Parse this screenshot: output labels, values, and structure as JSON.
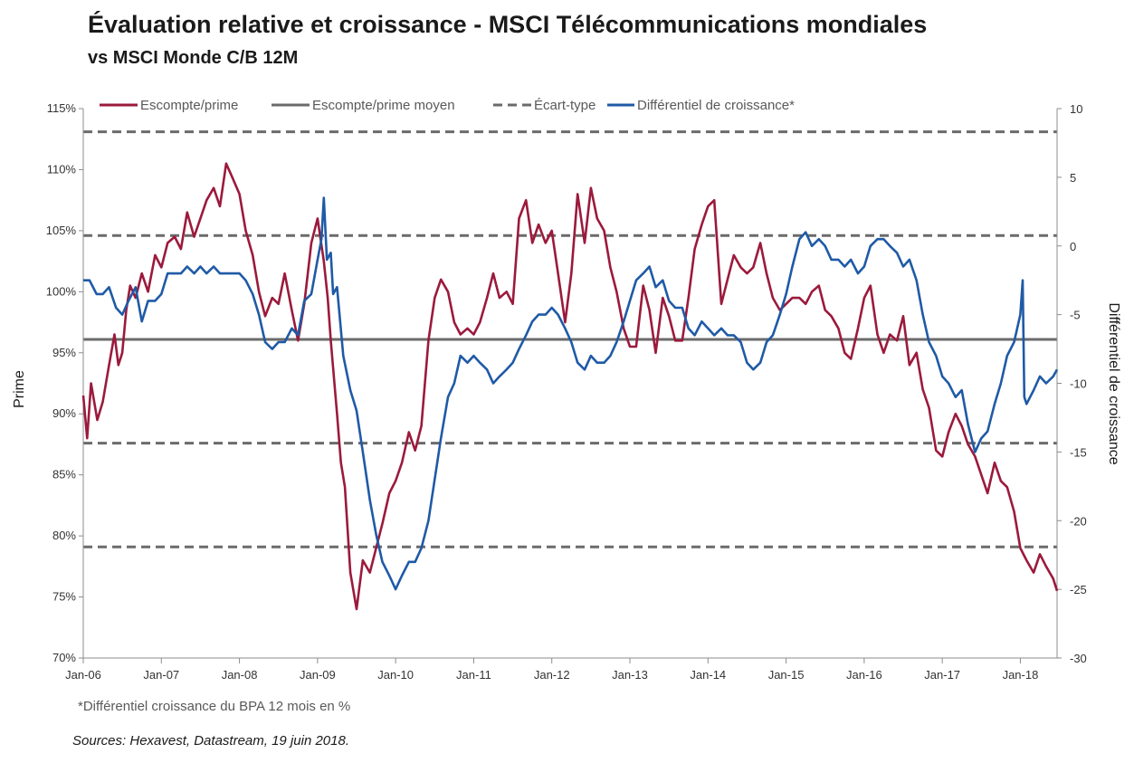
{
  "header": {
    "title": "Évaluation relative et croissance - MSCI Télécommunications mondiales",
    "subtitle": "vs MSCI Monde C/B 12M"
  },
  "footnote": "*Différentiel croissance du BPA 12 mois en %",
  "sources": "Sources: Hexavest, Datastream, 19 juin 2018.",
  "colors": {
    "premium": "#9b1a3c",
    "growth": "#1f5aa6",
    "average": "#6b6b6b",
    "stddev": "#6b6b6b",
    "axis": "#8c8c8c"
  },
  "chart_data": {
    "type": "line",
    "title": "",
    "ylabel": "Prime",
    "y2label": "Différentiel de croissance",
    "ylim": [
      70,
      115
    ],
    "y2lim": [
      -30,
      10
    ],
    "xlim": [
      2006.0,
      2018.47
    ],
    "yticks": [
      "70%",
      "75%",
      "80%",
      "85%",
      "90%",
      "95%",
      "100%",
      "105%",
      "110%",
      "115%"
    ],
    "y2ticks": [
      "-30",
      "-25",
      "-20",
      "-15",
      "-10",
      "-5",
      "0",
      "5",
      "10"
    ],
    "xticks": [
      "Jan-06",
      "Jan-07",
      "Jan-08",
      "Jan-09",
      "Jan-10",
      "Jan-11",
      "Jan-12",
      "Jan-13",
      "Jan-14",
      "Jan-15",
      "Jan-16",
      "Jan-17",
      "Jan-18"
    ],
    "legend": [
      "Escompte/prime",
      "Escompte/prime moyen",
      "Écart-type",
      "Différentiel de croissance*"
    ],
    "legend_position": "top",
    "average": 96.1,
    "stddev_lines": [
      87.6,
      79.1,
      104.6,
      113.1
    ],
    "series": [
      {
        "name": "Escompte/prime",
        "axis": "left",
        "x": [
          2006.0,
          2006.05,
          2006.1,
          2006.18,
          2006.25,
          2006.33,
          2006.4,
          2006.45,
          2006.5,
          2006.55,
          2006.6,
          2006.67,
          2006.75,
          2006.83,
          2006.92,
          2007.0,
          2007.08,
          2007.17,
          2007.25,
          2007.33,
          2007.42,
          2007.5,
          2007.58,
          2007.67,
          2007.75,
          2007.83,
          2007.9,
          2008.0,
          2008.08,
          2008.17,
          2008.25,
          2008.33,
          2008.42,
          2008.5,
          2008.58,
          2008.67,
          2008.75,
          2008.83,
          2008.92,
          2009.0,
          2009.08,
          2009.13,
          2009.17,
          2009.25,
          2009.3,
          2009.35,
          2009.42,
          2009.5,
          2009.58,
          2009.67,
          2009.75,
          2009.83,
          2009.92,
          2010.0,
          2010.08,
          2010.17,
          2010.25,
          2010.33,
          2010.42,
          2010.5,
          2010.58,
          2010.67,
          2010.75,
          2010.83,
          2010.92,
          2011.0,
          2011.08,
          2011.17,
          2011.25,
          2011.33,
          2011.42,
          2011.5,
          2011.58,
          2011.67,
          2011.75,
          2011.83,
          2011.92,
          2012.0,
          2012.08,
          2012.17,
          2012.25,
          2012.33,
          2012.42,
          2012.5,
          2012.58,
          2012.67,
          2012.75,
          2012.83,
          2012.92,
          2013.0,
          2013.08,
          2013.17,
          2013.25,
          2013.33,
          2013.42,
          2013.5,
          2013.58,
          2013.67,
          2013.75,
          2013.83,
          2013.92,
          2014.0,
          2014.08,
          2014.17,
          2014.25,
          2014.33,
          2014.42,
          2014.5,
          2014.58,
          2014.67,
          2014.75,
          2014.83,
          2014.92,
          2015.0,
          2015.08,
          2015.17,
          2015.25,
          2015.33,
          2015.42,
          2015.5,
          2015.58,
          2015.67,
          2015.75,
          2015.83,
          2015.92,
          2016.0,
          2016.08,
          2016.17,
          2016.25,
          2016.33,
          2016.42,
          2016.5,
          2016.58,
          2016.67,
          2016.75,
          2016.83,
          2016.92,
          2017.0,
          2017.08,
          2017.17,
          2017.25,
          2017.33,
          2017.42,
          2017.5,
          2017.58,
          2017.67,
          2017.75,
          2017.83,
          2017.92,
          2018.0,
          2018.08,
          2018.17,
          2018.25,
          2018.33,
          2018.42,
          2018.47
        ],
        "values": [
          91.5,
          88.0,
          92.5,
          89.5,
          91.0,
          94.0,
          96.5,
          94.0,
          95.0,
          98.5,
          100.5,
          99.5,
          101.5,
          100.0,
          103.0,
          102.0,
          104.0,
          104.5,
          103.5,
          106.5,
          104.5,
          106.0,
          107.5,
          108.5,
          107.0,
          110.5,
          109.5,
          108.0,
          105.0,
          103.0,
          100.0,
          98.0,
          99.5,
          99.0,
          101.5,
          98.5,
          96.0,
          99.0,
          104.0,
          106.0,
          102.5,
          99.5,
          96.0,
          90.0,
          86.0,
          84.0,
          77.0,
          74.0,
          78.0,
          77.0,
          79.0,
          81.0,
          83.5,
          84.5,
          86.0,
          88.5,
          87.0,
          89.0,
          96.0,
          99.5,
          101.0,
          100.0,
          97.5,
          96.5,
          97.0,
          96.5,
          97.5,
          99.5,
          101.5,
          99.5,
          100.0,
          99.0,
          106.0,
          107.5,
          104.0,
          105.5,
          104.0,
          105.0,
          101.5,
          97.5,
          101.5,
          108.0,
          104.0,
          108.5,
          106.0,
          105.0,
          102.0,
          100.0,
          97.0,
          95.5,
          95.5,
          100.5,
          98.5,
          95.0,
          99.5,
          98.0,
          96.0,
          96.0,
          99.5,
          103.5,
          105.5,
          107.0,
          107.5,
          99.0,
          101.0,
          103.0,
          102.0,
          101.5,
          102.0,
          104.0,
          101.5,
          99.5,
          98.5,
          99.0,
          99.5,
          99.5,
          99.0,
          100.0,
          100.5,
          98.5,
          98.0,
          97.0,
          95.0,
          94.5,
          97.0,
          99.5,
          100.5,
          96.5,
          95.0,
          96.5,
          96.0,
          98.0,
          94.0,
          95.0,
          92.0,
          90.5,
          87.0,
          86.5,
          88.5,
          90.0,
          89.0,
          87.5,
          86.5,
          85.0,
          83.5,
          86.0,
          84.5,
          84.0,
          82.0,
          79.0,
          78.0,
          77.0,
          78.5,
          77.5,
          76.5,
          75.5
        ]
      },
      {
        "name": "Différentiel de croissance*",
        "axis": "right",
        "x": [
          2006.0,
          2006.08,
          2006.17,
          2006.25,
          2006.33,
          2006.42,
          2006.5,
          2006.58,
          2006.67,
          2006.75,
          2006.83,
          2006.92,
          2007.0,
          2007.08,
          2007.17,
          2007.25,
          2007.33,
          2007.42,
          2007.5,
          2007.58,
          2007.67,
          2007.75,
          2007.83,
          2007.92,
          2008.0,
          2008.08,
          2008.17,
          2008.25,
          2008.33,
          2008.42,
          2008.5,
          2008.58,
          2008.67,
          2008.75,
          2008.83,
          2008.92,
          2009.0,
          2009.05,
          2009.08,
          2009.12,
          2009.17,
          2009.2,
          2009.25,
          2009.33,
          2009.42,
          2009.5,
          2009.58,
          2009.67,
          2009.75,
          2009.83,
          2009.92,
          2010.0,
          2010.08,
          2010.17,
          2010.25,
          2010.33,
          2010.42,
          2010.5,
          2010.58,
          2010.67,
          2010.75,
          2010.83,
          2010.92,
          2011.0,
          2011.08,
          2011.17,
          2011.25,
          2011.33,
          2011.42,
          2011.5,
          2011.58,
          2011.67,
          2011.75,
          2011.83,
          2011.92,
          2012.0,
          2012.08,
          2012.17,
          2012.25,
          2012.33,
          2012.42,
          2012.5,
          2012.58,
          2012.67,
          2012.75,
          2012.83,
          2012.92,
          2013.0,
          2013.08,
          2013.17,
          2013.25,
          2013.33,
          2013.42,
          2013.5,
          2013.58,
          2013.67,
          2013.75,
          2013.83,
          2013.92,
          2014.0,
          2014.08,
          2014.17,
          2014.25,
          2014.33,
          2014.42,
          2014.5,
          2014.58,
          2014.67,
          2014.75,
          2014.83,
          2014.92,
          2015.0,
          2015.08,
          2015.17,
          2015.25,
          2015.33,
          2015.42,
          2015.5,
          2015.58,
          2015.67,
          2015.75,
          2015.83,
          2015.92,
          2016.0,
          2016.08,
          2016.17,
          2016.25,
          2016.33,
          2016.42,
          2016.5,
          2016.58,
          2016.67,
          2016.75,
          2016.83,
          2016.92,
          2017.0,
          2017.08,
          2017.17,
          2017.25,
          2017.33,
          2017.42,
          2017.5,
          2017.58,
          2017.67,
          2017.75,
          2017.83,
          2017.92,
          2018.0,
          2018.03,
          2018.05,
          2018.08,
          2018.17,
          2018.25,
          2018.33,
          2018.42,
          2018.47
        ],
        "values": [
          -2.5,
          -2.5,
          -3.5,
          -3.5,
          -3.0,
          -4.5,
          -5.0,
          -4.0,
          -3.0,
          -5.5,
          -4.0,
          -4.0,
          -3.5,
          -2.0,
          -2.0,
          -2.0,
          -1.5,
          -2.0,
          -1.5,
          -2.0,
          -1.5,
          -2.0,
          -2.0,
          -2.0,
          -2.0,
          -2.5,
          -3.5,
          -5.0,
          -7.0,
          -7.5,
          -7.0,
          -7.0,
          -6.0,
          -6.5,
          -4.0,
          -3.5,
          -1.0,
          0.5,
          3.5,
          -1.0,
          -0.5,
          -3.5,
          -3.0,
          -8.0,
          -10.5,
          -12.0,
          -15.0,
          -18.5,
          -21.0,
          -23.0,
          -24.0,
          -25.0,
          -24.0,
          -23.0,
          -23.0,
          -22.0,
          -20.0,
          -17.0,
          -14.0,
          -11.0,
          -10.0,
          -8.0,
          -8.5,
          -8.0,
          -8.5,
          -9.0,
          -10.0,
          -9.5,
          -9.0,
          -8.5,
          -7.5,
          -6.5,
          -5.5,
          -5.0,
          -5.0,
          -4.5,
          -5.0,
          -6.0,
          -7.0,
          -8.5,
          -9.0,
          -8.0,
          -8.5,
          -8.5,
          -8.0,
          -7.0,
          -5.5,
          -4.0,
          -2.5,
          -2.0,
          -1.5,
          -3.0,
          -2.5,
          -4.0,
          -4.5,
          -4.5,
          -6.0,
          -6.5,
          -5.5,
          -6.0,
          -6.5,
          -6.0,
          -6.5,
          -6.5,
          -7.0,
          -8.5,
          -9.0,
          -8.5,
          -7.0,
          -6.5,
          -5.0,
          -3.5,
          -1.5,
          0.5,
          1.0,
          0.0,
          0.5,
          0.0,
          -1.0,
          -1.0,
          -1.5,
          -1.0,
          -2.0,
          -1.5,
          0.0,
          0.5,
          0.5,
          0.0,
          -0.5,
          -1.5,
          -1.0,
          -2.5,
          -5.0,
          -7.0,
          -8.0,
          -9.5,
          -10.0,
          -11.0,
          -10.5,
          -13.0,
          -15.0,
          -14.0,
          -13.5,
          -11.5,
          -10.0,
          -8.0,
          -7.0,
          -5.0,
          -2.5,
          -11.0,
          -11.5,
          -10.5,
          -9.5,
          -10.0,
          -9.5,
          -9.0
        ]
      }
    ]
  }
}
